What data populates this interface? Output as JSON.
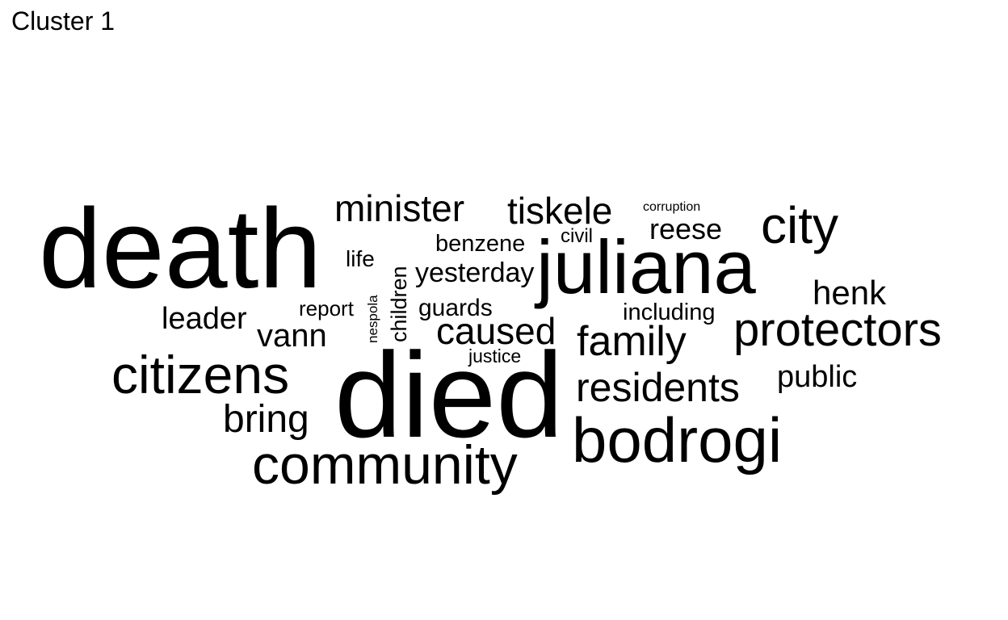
{
  "title": "Cluster 1",
  "words": [
    {
      "id": "death",
      "text": "death"
    },
    {
      "id": "died",
      "text": "died"
    },
    {
      "id": "juliana",
      "text": "juliana"
    },
    {
      "id": "bodrogi",
      "text": "bodrogi"
    },
    {
      "id": "community",
      "text": "community"
    },
    {
      "id": "citizens",
      "text": "citizens"
    },
    {
      "id": "protectors",
      "text": "protectors"
    },
    {
      "id": "city",
      "text": "city"
    },
    {
      "id": "family",
      "text": "family"
    },
    {
      "id": "residents",
      "text": "residents"
    },
    {
      "id": "minister",
      "text": "minister"
    },
    {
      "id": "tiskele",
      "text": "tiskele"
    },
    {
      "id": "caused",
      "text": "caused"
    },
    {
      "id": "bring",
      "text": "bring"
    },
    {
      "id": "henk",
      "text": "henk"
    },
    {
      "id": "vann",
      "text": "vann"
    },
    {
      "id": "leader",
      "text": "leader"
    },
    {
      "id": "public",
      "text": "public"
    },
    {
      "id": "reese",
      "text": "reese"
    },
    {
      "id": "yesterday",
      "text": "yesterday"
    },
    {
      "id": "benzene",
      "text": "benzene"
    },
    {
      "id": "guards",
      "text": "guards"
    },
    {
      "id": "including",
      "text": "including"
    },
    {
      "id": "children",
      "text": "children"
    },
    {
      "id": "life",
      "text": "life"
    },
    {
      "id": "report",
      "text": "report"
    },
    {
      "id": "civil",
      "text": "civil"
    },
    {
      "id": "justice",
      "text": "justice"
    },
    {
      "id": "nespola",
      "text": "nespola"
    },
    {
      "id": "corruption",
      "text": "corruption"
    }
  ]
}
